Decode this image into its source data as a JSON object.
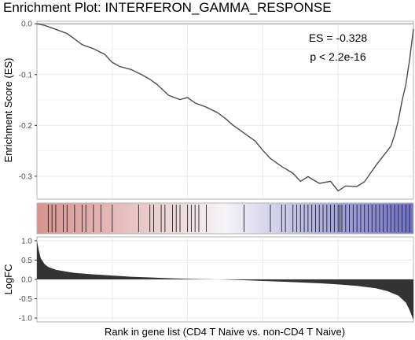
{
  "chart_data": {
    "type": "line",
    "title": "Enrichment Plot: INTERFERON_GAMMA_RESPONSE",
    "xlabel": "Rank in gene list (CD4 T Naive vs. non-CD4 T Naive)",
    "panels": {
      "enrichment": {
        "ylabel": "Enrichment Score (ES)",
        "yticks": [
          "0.0",
          "-0.1",
          "-0.2",
          "-0.3"
        ],
        "tick_values": [
          0.0,
          -0.1,
          -0.2,
          -0.3
        ],
        "ylim": [
          -0.345,
          0.005
        ],
        "xlim": [
          0,
          1
        ],
        "annotations": [
          "ES = -0.328",
          "p < 2.2e-16"
        ],
        "series": [
          {
            "x": [
              0.0,
              0.02,
              0.05,
              0.08,
              0.1,
              0.12,
              0.15,
              0.18,
              0.2,
              0.22,
              0.25,
              0.28,
              0.3,
              0.32,
              0.35,
              0.38,
              0.4,
              0.42,
              0.45,
              0.48,
              0.5,
              0.52,
              0.55,
              0.58,
              0.6,
              0.62,
              0.65,
              0.68,
              0.7,
              0.72,
              0.75,
              0.78,
              0.8,
              0.82,
              0.85,
              0.87,
              0.9,
              0.92,
              0.94,
              0.95,
              0.96,
              0.97,
              0.98,
              0.99,
              1.0
            ],
            "y": [
              0.0,
              -0.003,
              -0.01,
              -0.02,
              -0.03,
              -0.04,
              -0.05,
              -0.06,
              -0.075,
              -0.085,
              -0.09,
              -0.1,
              -0.11,
              -0.12,
              -0.14,
              -0.15,
              -0.145,
              -0.155,
              -0.165,
              -0.175,
              -0.185,
              -0.2,
              -0.215,
              -0.23,
              -0.25,
              -0.265,
              -0.28,
              -0.295,
              -0.31,
              -0.3,
              -0.315,
              -0.31,
              -0.328,
              -0.32,
              -0.32,
              -0.31,
              -0.28,
              -0.26,
              -0.24,
              -0.22,
              -0.19,
              -0.15,
              -0.12,
              -0.07,
              -0.01
            ]
          }
        ]
      },
      "rank_bar": {
        "color_start": "#d9928c",
        "color_mid": "#f5f3f7",
        "color_end": "#7070cc",
        "gene_positions": [
          0.03,
          0.04,
          0.05,
          0.07,
          0.08,
          0.1,
          0.12,
          0.13,
          0.15,
          0.17,
          0.2,
          0.27,
          0.3,
          0.31,
          0.33,
          0.34,
          0.36,
          0.37,
          0.38,
          0.4,
          0.41,
          0.42,
          0.43,
          0.45,
          0.55,
          0.62,
          0.65,
          0.66,
          0.68,
          0.69,
          0.7,
          0.71,
          0.72,
          0.73,
          0.74,
          0.75,
          0.76,
          0.77,
          0.78,
          0.79,
          0.8,
          0.805,
          0.81,
          0.82,
          0.83,
          0.84,
          0.85,
          0.86,
          0.87,
          0.88,
          0.89,
          0.9,
          0.91,
          0.92,
          0.93,
          0.94,
          0.95,
          0.96,
          0.97,
          0.98,
          0.99
        ]
      },
      "logfc": {
        "ylabel": "LogFC",
        "yticks": [
          "1.0",
          "0.5",
          "0.0",
          "-0.5",
          "-1.0"
        ],
        "tick_values": [
          1.0,
          0.5,
          0.0,
          -0.5,
          -1.0
        ],
        "ylim": [
          -1.1,
          1.1
        ],
        "curve": {
          "x": [
            0.0,
            0.005,
            0.01,
            0.02,
            0.03,
            0.05,
            0.08,
            0.1,
            0.15,
            0.2,
            0.25,
            0.3,
            0.35,
            0.4,
            0.45,
            0.5,
            0.55,
            0.6,
            0.65,
            0.7,
            0.75,
            0.8,
            0.85,
            0.9,
            0.93,
            0.96,
            0.98,
            0.99,
            1.0
          ],
          "y": [
            1.0,
            0.75,
            0.55,
            0.4,
            0.32,
            0.25,
            0.2,
            0.17,
            0.13,
            0.1,
            0.07,
            0.05,
            0.03,
            0.015,
            0.005,
            -0.005,
            -0.02,
            -0.04,
            -0.06,
            -0.08,
            -0.1,
            -0.13,
            -0.17,
            -0.23,
            -0.3,
            -0.42,
            -0.6,
            -0.8,
            -1.05
          ]
        }
      }
    },
    "grid": true,
    "legend": "none"
  }
}
